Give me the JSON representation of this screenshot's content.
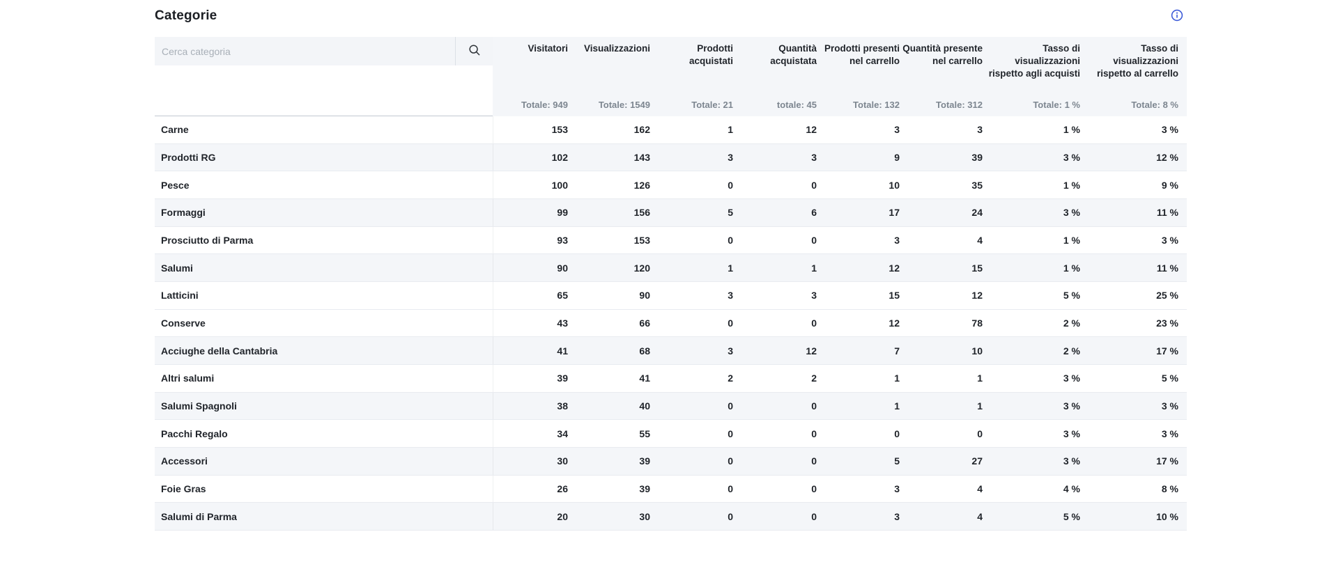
{
  "page": {
    "title": "Categorie"
  },
  "search": {
    "placeholder": "Cerca categoria",
    "value": ""
  },
  "icons": {
    "search": "magnifier-icon",
    "info": "info-circle-icon"
  },
  "colors": {
    "accent_blue": "#3d5bd8",
    "panel_gray": "#f4f6f9",
    "shaded_row_gray": "#f4f6f9",
    "muted_text": "#7d8690",
    "main_text": "#20242a"
  },
  "table": {
    "columns": [
      {
        "label": "Visitatori",
        "lines": [
          "Visitatori"
        ],
        "total": "Totale: 949"
      },
      {
        "label": "Visualizzazioni",
        "lines": [
          "Visualizzazioni"
        ],
        "total": "Totale: 1549"
      },
      {
        "label": "Prodotti acquistati",
        "lines": [
          "Prodotti",
          "acquistati"
        ],
        "total": "Totale: 21"
      },
      {
        "label": "Quantità acquistata",
        "lines": [
          "Quantità",
          "acquistata"
        ],
        "total": "totale: 45"
      },
      {
        "label": "Prodotti presenti nel carrello",
        "lines": [
          "Prodotti presenti",
          "nel carrello"
        ],
        "total": "Totale: 132"
      },
      {
        "label": "Quantità presente nel carrello",
        "lines": [
          "Quantità presente",
          "nel carrello"
        ],
        "total": "Totale: 312"
      },
      {
        "label": "Tasso di visualizzazioni rispetto agli acquisti",
        "lines": [
          "Tasso di",
          "visualizzazioni",
          "rispetto agli acquisti"
        ],
        "total": "Totale: 1 %"
      },
      {
        "label": "Tasso di visualizzazioni rispetto al carrello",
        "lines": [
          "Tasso di",
          "visualizzazioni",
          "rispetto al carrello"
        ],
        "total": "Totale: 8 %"
      }
    ],
    "rows": [
      {
        "name": "Carne",
        "shaded": false,
        "values": [
          "153",
          "162",
          "1",
          "12",
          "3",
          "3",
          "1 %",
          "3 %"
        ]
      },
      {
        "name": "Prodotti RG",
        "shaded": true,
        "values": [
          "102",
          "143",
          "3",
          "3",
          "9",
          "39",
          "3 %",
          "12 %"
        ]
      },
      {
        "name": "Pesce",
        "shaded": false,
        "values": [
          "100",
          "126",
          "0",
          "0",
          "10",
          "35",
          "1 %",
          "9 %"
        ]
      },
      {
        "name": "Formaggi",
        "shaded": true,
        "values": [
          "99",
          "156",
          "5",
          "6",
          "17",
          "24",
          "3 %",
          "11 %"
        ]
      },
      {
        "name": "Prosciutto di Parma",
        "shaded": false,
        "values": [
          "93",
          "153",
          "0",
          "0",
          "3",
          "4",
          "1 %",
          "3 %"
        ]
      },
      {
        "name": "Salumi",
        "shaded": true,
        "values": [
          "90",
          "120",
          "1",
          "1",
          "12",
          "15",
          "1 %",
          "11 %"
        ]
      },
      {
        "name": "Latticini",
        "shaded": false,
        "values": [
          "65",
          "90",
          "3",
          "3",
          "15",
          "12",
          "5 %",
          "25 %"
        ]
      },
      {
        "name": "Conserve",
        "shaded": false,
        "values": [
          "43",
          "66",
          "0",
          "0",
          "12",
          "78",
          "2 %",
          "23 %"
        ]
      },
      {
        "name": "Acciughe della Cantabria",
        "shaded": true,
        "values": [
          "41",
          "68",
          "3",
          "12",
          "7",
          "10",
          "2 %",
          "17 %"
        ]
      },
      {
        "name": "Altri salumi",
        "shaded": false,
        "values": [
          "39",
          "41",
          "2",
          "2",
          "1",
          "1",
          "3 %",
          "5 %"
        ]
      },
      {
        "name": "Salumi Spagnoli",
        "shaded": true,
        "values": [
          "38",
          "40",
          "0",
          "0",
          "1",
          "1",
          "3 %",
          "3 %"
        ]
      },
      {
        "name": "Pacchi Regalo",
        "shaded": false,
        "values": [
          "34",
          "55",
          "0",
          "0",
          "0",
          "0",
          "3 %",
          "3 %"
        ]
      },
      {
        "name": "Accessori",
        "shaded": true,
        "values": [
          "30",
          "39",
          "0",
          "0",
          "5",
          "27",
          "3 %",
          "17 %"
        ]
      },
      {
        "name": "Foie Gras",
        "shaded": false,
        "values": [
          "26",
          "39",
          "0",
          "0",
          "3",
          "4",
          "4 %",
          "8 %"
        ]
      },
      {
        "name": "Salumi di Parma",
        "shaded": true,
        "values": [
          "20",
          "30",
          "0",
          "0",
          "3",
          "4",
          "5 %",
          "10 %"
        ]
      }
    ]
  }
}
